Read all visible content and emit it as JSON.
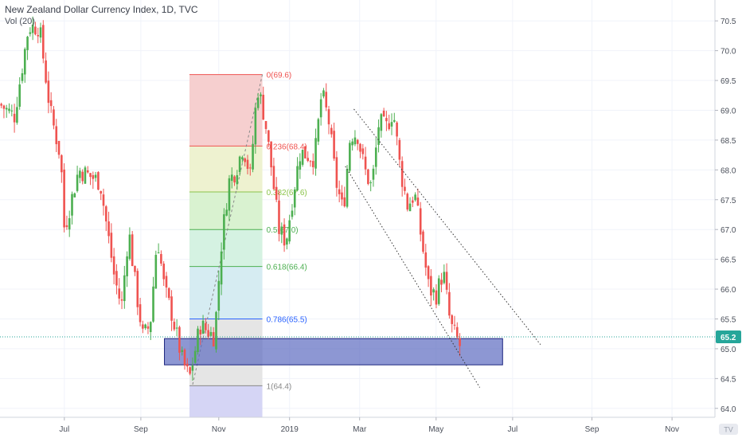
{
  "header": {
    "title": "New Zealand Dollar Currency Index, 1D, TVC",
    "volume_label": "Vol (20)"
  },
  "chart_data": {
    "type": "candlestick",
    "y_axis": {
      "position": "right",
      "range": [
        63.85,
        70.85
      ],
      "ticks": [
        "64.0",
        "64.5",
        "65.0",
        "65.5",
        "66.0",
        "66.5",
        "67.0",
        "67.5",
        "68.0",
        "68.5",
        "69.0",
        "69.5",
        "70.0",
        "70.5"
      ]
    },
    "x_axis": {
      "ticks": [
        {
          "label": "Jul",
          "t": 0.09
        },
        {
          "label": "Sep",
          "t": 0.197
        },
        {
          "label": "Nov",
          "t": 0.306
        },
        {
          "label": "2019",
          "t": 0.405
        },
        {
          "label": "Mar",
          "t": 0.503
        },
        {
          "label": "May",
          "t": 0.61
        },
        {
          "label": "Jul",
          "t": 0.717
        },
        {
          "label": "Sep",
          "t": 0.828
        },
        {
          "label": "Nov",
          "t": 0.94
        }
      ]
    },
    "last_price": {
      "value": 65.2,
      "label": "65.2",
      "color": "#26a69a"
    },
    "candle_colors": {
      "up": "#4caf50",
      "down": "#ef5350"
    },
    "price_path": [
      [
        0.0,
        69.1
      ],
      [
        0.02,
        68.9
      ],
      [
        0.04,
        70.4
      ],
      [
        0.055,
        70.4
      ],
      [
        0.07,
        69.0
      ],
      [
        0.085,
        68.2
      ],
      [
        0.09,
        67.0
      ],
      [
        0.11,
        68.0
      ],
      [
        0.14,
        67.8
      ],
      [
        0.16,
        66.2
      ],
      [
        0.17,
        65.7
      ],
      [
        0.18,
        67.0
      ],
      [
        0.19,
        66.0
      ],
      [
        0.2,
        65.2
      ],
      [
        0.21,
        65.4
      ],
      [
        0.22,
        66.9
      ],
      [
        0.23,
        66.0
      ],
      [
        0.24,
        65.6
      ],
      [
        0.255,
        64.8
      ],
      [
        0.265,
        64.5
      ],
      [
        0.28,
        65.4
      ],
      [
        0.3,
        65.2
      ],
      [
        0.31,
        66.8
      ],
      [
        0.32,
        67.8
      ],
      [
        0.33,
        68.0
      ],
      [
        0.34,
        68.4
      ],
      [
        0.35,
        67.9
      ],
      [
        0.36,
        69.4
      ],
      [
        0.37,
        68.9
      ],
      [
        0.38,
        68.0
      ],
      [
        0.39,
        67.0
      ],
      [
        0.4,
        66.8
      ],
      [
        0.41,
        67.6
      ],
      [
        0.42,
        68.3
      ],
      [
        0.44,
        68.2
      ],
      [
        0.45,
        69.3
      ],
      [
        0.46,
        68.8
      ],
      [
        0.47,
        67.8
      ],
      [
        0.48,
        67.3
      ],
      [
        0.49,
        68.6
      ],
      [
        0.5,
        68.6
      ],
      [
        0.51,
        68.0
      ],
      [
        0.52,
        67.7
      ],
      [
        0.53,
        68.8
      ],
      [
        0.54,
        68.7
      ],
      [
        0.55,
        69.0
      ],
      [
        0.56,
        68.0
      ],
      [
        0.57,
        67.4
      ],
      [
        0.58,
        67.6
      ],
      [
        0.59,
        66.8
      ],
      [
        0.6,
        66.0
      ],
      [
        0.61,
        65.9
      ],
      [
        0.62,
        66.3
      ],
      [
        0.63,
        65.4
      ],
      [
        0.645,
        65.0
      ]
    ]
  },
  "fibonacci": {
    "range": [
      0.265,
      0.367
    ],
    "levels": [
      {
        "label": "0(69.6)",
        "price": 69.6,
        "color": "#ef5350",
        "fill": "#f6cfcf"
      },
      {
        "label": "0.236(68.4)",
        "price": 68.4,
        "color": "#ef5350",
        "fill": "#eef2d0"
      },
      {
        "label": "0.382(67.6)",
        "price": 67.63,
        "color": "#8bc34a",
        "fill": "#d9f2d0"
      },
      {
        "label": "0.5(67.0)",
        "price": 67.0,
        "color": "#4caf50",
        "fill": "#d5f2e2"
      },
      {
        "label": "0.618(66.4)",
        "price": 66.38,
        "color": "#4caf50",
        "fill": "#d6ecf2"
      },
      {
        "label": "0.786(65.5)",
        "price": 65.5,
        "color": "#2962ff",
        "fill": "#e5e5e5"
      },
      {
        "label": "1(64.4)",
        "price": 64.38,
        "color": "#888888",
        "fill": "#d5d5f5"
      }
    ]
  },
  "zone": {
    "price_top": 65.17,
    "price_bottom": 64.73,
    "x0": 0.23,
    "x1": 0.703,
    "fill": "#5c6bc0",
    "border": "#1a237e"
  },
  "channel": {
    "upper": [
      [
        0.495,
        69.02
      ],
      [
        0.756,
        65.07
      ]
    ],
    "lower": [
      [
        0.483,
        68.06
      ],
      [
        0.671,
        64.35
      ]
    ]
  },
  "watermark": "TV"
}
